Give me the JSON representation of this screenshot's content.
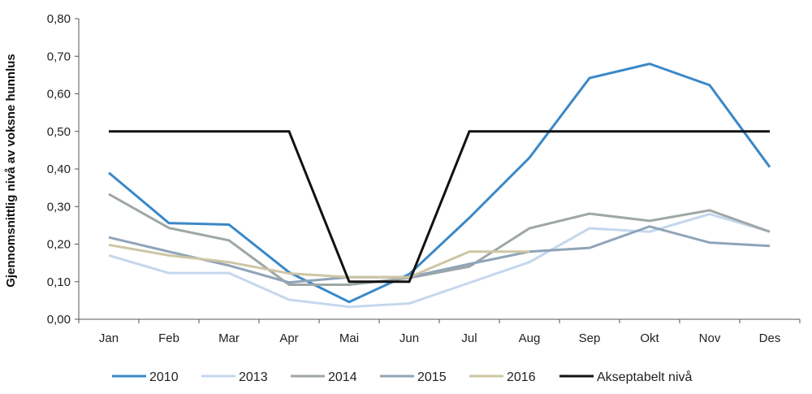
{
  "chart_data": {
    "type": "line",
    "title": "",
    "xlabel": "",
    "ylabel": "Gjennomsnittlig nivå av voksne hunnlus",
    "categories": [
      "Jan",
      "Feb",
      "Mar",
      "Apr",
      "Mai",
      "Jun",
      "Jul",
      "Aug",
      "Sep",
      "Okt",
      "Nov",
      "Des"
    ],
    "ylim": [
      0,
      0.8
    ],
    "yticks": [
      "0,00",
      "0,10",
      "0,20",
      "0,30",
      "0,40",
      "0,50",
      "0,60",
      "0,70",
      "0,80"
    ],
    "grid": false,
    "legend_position": "bottom",
    "series": [
      {
        "name": "2010",
        "color": "#3a88c8",
        "values": [
          0.39,
          0.256,
          0.252,
          0.125,
          0.046,
          0.12,
          0.27,
          0.43,
          0.642,
          0.68,
          0.623,
          0.405
        ]
      },
      {
        "name": "2013",
        "color": "#c5d7ee",
        "values": [
          0.17,
          0.123,
          0.123,
          0.052,
          0.033,
          0.042,
          0.097,
          0.152,
          0.242,
          0.233,
          0.28,
          0.233
        ]
      },
      {
        "name": "2014",
        "color": "#9ea7a5",
        "values": [
          0.333,
          0.243,
          0.21,
          0.092,
          0.092,
          0.11,
          0.14,
          0.242,
          0.281,
          0.262,
          0.29,
          0.233
        ]
      },
      {
        "name": "2015",
        "color": "#8fa4b8",
        "values": [
          0.218,
          0.18,
          0.143,
          0.098,
          0.112,
          0.112,
          0.147,
          0.18,
          0.19,
          0.247,
          0.204,
          0.195
        ]
      },
      {
        "name": "2016",
        "color": "#cdc6a4",
        "values": [
          0.198,
          0.17,
          0.152,
          0.122,
          0.112,
          0.112,
          0.18,
          0.18,
          null,
          null,
          null,
          null
        ]
      },
      {
        "name": "Akseptabelt nivå",
        "color": "#111111",
        "values": [
          0.5,
          0.5,
          0.5,
          0.5,
          0.1,
          0.1,
          0.5,
          0.5,
          0.5,
          0.5,
          0.5,
          0.5
        ]
      }
    ]
  }
}
